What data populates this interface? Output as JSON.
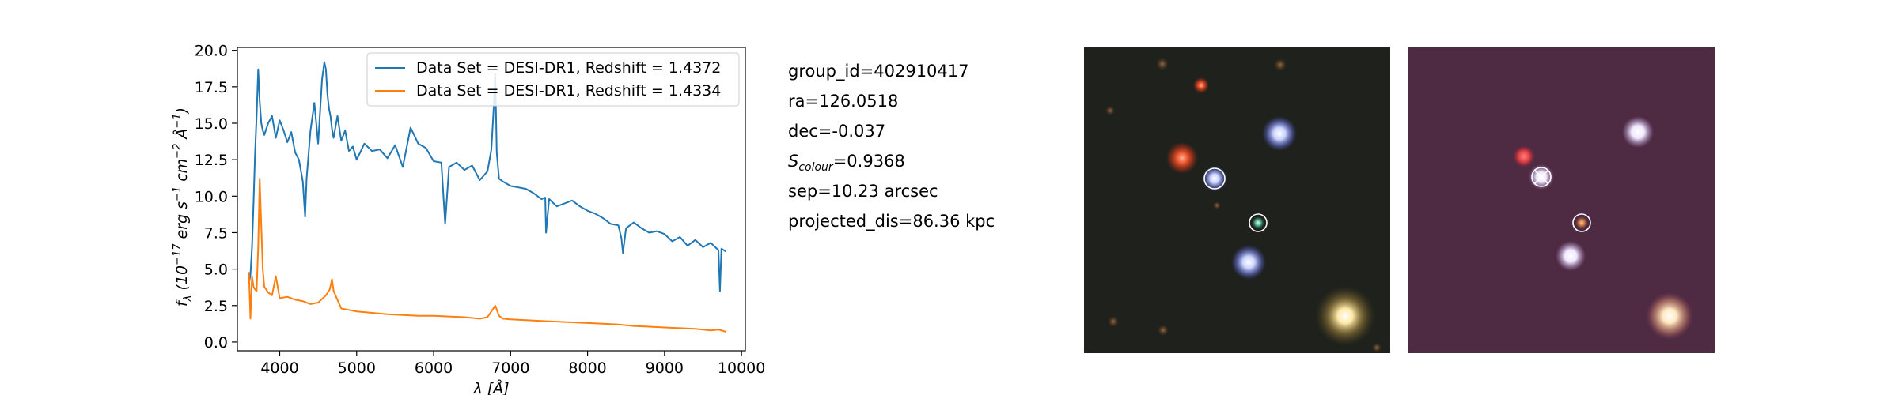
{
  "chart_data": {
    "type": "line",
    "xlabel": "λ [Å]",
    "ylabel": "f_λ (10^-17 erg s^-1 cm^-2 Å^-1)",
    "xlim": [
      3450,
      10050
    ],
    "ylim": [
      -0.6,
      20.2
    ],
    "xticks": [
      4000,
      5000,
      6000,
      7000,
      8000,
      9000,
      10000
    ],
    "yticks": [
      0.0,
      2.5,
      5.0,
      7.5,
      10.0,
      12.5,
      15.0,
      17.5,
      20.0
    ],
    "grid": false,
    "legend_position": "top-right",
    "series": [
      {
        "name": "Data Set = DESI-DR1, Redshift = 1.4372",
        "color": "#1f77b4",
        "x": [
          3600,
          3620,
          3640,
          3660,
          3680,
          3700,
          3720,
          3740,
          3760,
          3780,
          3800,
          3850,
          3900,
          3950,
          4000,
          4050,
          4100,
          4150,
          4200,
          4250,
          4300,
          4330,
          4350,
          4400,
          4450,
          4500,
          4550,
          4580,
          4600,
          4620,
          4640,
          4660,
          4680,
          4700,
          4750,
          4800,
          4850,
          4900,
          4950,
          5000,
          5100,
          5200,
          5300,
          5400,
          5500,
          5600,
          5700,
          5800,
          5900,
          6000,
          6100,
          6150,
          6200,
          6300,
          6400,
          6500,
          6600,
          6700,
          6750,
          6780,
          6800,
          6820,
          6850,
          6900,
          7000,
          7100,
          7200,
          7300,
          7400,
          7450,
          7460,
          7500,
          7600,
          7700,
          7800,
          7900,
          8000,
          8100,
          8200,
          8300,
          8400,
          8440,
          8460,
          8500,
          8600,
          8700,
          8800,
          8900,
          9000,
          9100,
          9200,
          9300,
          9400,
          9500,
          9600,
          9700,
          9720,
          9740,
          9800
        ],
        "y": [
          4.0,
          4.6,
          6.5,
          9.5,
          13.0,
          15.5,
          18.7,
          16.5,
          15.0,
          14.5,
          14.2,
          15.0,
          15.5,
          14.0,
          15.2,
          14.5,
          13.7,
          14.4,
          13.0,
          12.5,
          11.0,
          8.6,
          11.2,
          14.5,
          16.4,
          13.6,
          18.0,
          19.2,
          18.7,
          17.0,
          16.0,
          15.5,
          14.6,
          14.0,
          15.5,
          13.8,
          14.5,
          13.1,
          13.4,
          12.5,
          13.6,
          13.1,
          13.2,
          12.6,
          13.5,
          12.0,
          14.7,
          13.6,
          13.3,
          12.4,
          12.3,
          8.1,
          12.0,
          12.3,
          11.8,
          12.1,
          11.1,
          11.7,
          13.2,
          16.0,
          18.4,
          13.0,
          11.2,
          11.0,
          10.7,
          10.6,
          10.5,
          10.2,
          9.8,
          9.9,
          7.5,
          9.8,
          9.3,
          9.5,
          9.7,
          9.3,
          9.0,
          8.8,
          8.5,
          8.1,
          8.0,
          7.1,
          6.1,
          7.8,
          8.2,
          7.8,
          7.5,
          7.6,
          7.4,
          6.9,
          7.2,
          6.6,
          7.0,
          6.5,
          6.8,
          6.3,
          3.5,
          6.4,
          6.2
        ]
      },
      {
        "name": "Data Set = DESI-DR1, Redshift = 1.4334",
        "color": "#ff7f0e",
        "x": [
          3600,
          3620,
          3640,
          3660,
          3680,
          3700,
          3720,
          3740,
          3760,
          3780,
          3800,
          3850,
          3900,
          3950,
          4000,
          4100,
          4200,
          4300,
          4400,
          4500,
          4600,
          4650,
          4680,
          4700,
          4800,
          5000,
          5200,
          5400,
          5600,
          5800,
          6000,
          6200,
          6400,
          6600,
          6700,
          6750,
          6800,
          6850,
          6900,
          7000,
          7200,
          7400,
          7600,
          7800,
          8000,
          8200,
          8400,
          8600,
          8800,
          9000,
          9200,
          9400,
          9600,
          9700,
          9800
        ],
        "y": [
          4.8,
          1.6,
          4.5,
          3.8,
          3.6,
          3.5,
          6.5,
          11.2,
          8.0,
          5.0,
          3.8,
          3.4,
          3.2,
          4.5,
          3.0,
          3.1,
          2.9,
          2.8,
          2.6,
          2.7,
          3.2,
          3.6,
          4.3,
          3.5,
          2.3,
          2.1,
          2.0,
          1.9,
          1.85,
          1.8,
          1.8,
          1.75,
          1.7,
          1.6,
          1.7,
          2.1,
          2.5,
          1.8,
          1.6,
          1.55,
          1.5,
          1.45,
          1.4,
          1.35,
          1.3,
          1.25,
          1.2,
          1.1,
          1.05,
          1.0,
          0.95,
          0.9,
          0.8,
          0.85,
          0.7
        ]
      }
    ]
  },
  "info": {
    "group_id": "group_id=402910417",
    "ra": "ra=126.0518",
    "dec": "dec=-0.037",
    "s_colour_symbol": "S",
    "s_colour_subscript": "colour",
    "s_colour_value": "=0.9368",
    "sep": "sep=10.23 arcsec",
    "projected_dis": "projected_dis=86.36 kpc"
  },
  "images": {
    "left_background": "#1f211c",
    "right_background": "#4e2b42"
  }
}
